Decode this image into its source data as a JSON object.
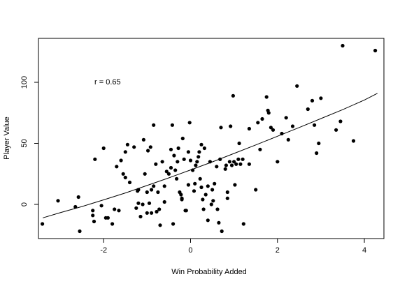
{
  "chart_data": {
    "type": "scatter",
    "title": "",
    "xlabel": "Win Probability Added",
    "ylabel": "Player Value",
    "xlim": [
      -3.5,
      4.45
    ],
    "ylim": [
      -28.0,
      136.0
    ],
    "x_ticks": [
      -2,
      0,
      2,
      4
    ],
    "y_ticks": [
      0,
      50,
      100
    ],
    "grid": false,
    "legend": "none",
    "annotation": "r = 0.65",
    "point_color": "#000000",
    "line_color": "#000000",
    "points": [
      [
        -3.41,
        -16
      ],
      [
        -3.05,
        3
      ],
      [
        -2.65,
        -2
      ],
      [
        -2.58,
        6
      ],
      [
        -2.55,
        -22
      ],
      [
        -2.25,
        -5
      ],
      [
        -2.25,
        -9
      ],
      [
        -2.22,
        -14
      ],
      [
        -2.2,
        37
      ],
      [
        -2.05,
        -1
      ],
      [
        -2.0,
        46
      ],
      [
        -1.95,
        -11
      ],
      [
        -1.9,
        -11
      ],
      [
        -1.8,
        -16
      ],
      [
        -1.75,
        -4
      ],
      [
        -1.7,
        31
      ],
      [
        -1.65,
        -5
      ],
      [
        -1.6,
        36
      ],
      [
        -1.55,
        25
      ],
      [
        -1.5,
        43
      ],
      [
        -1.5,
        22
      ],
      [
        -1.45,
        49
      ],
      [
        -1.4,
        18
      ],
      [
        -1.3,
        47
      ],
      [
        -1.25,
        -3
      ],
      [
        -1.22,
        11
      ],
      [
        -1.2,
        12
      ],
      [
        -1.2,
        1
      ],
      [
        -1.15,
        -10
      ],
      [
        -1.1,
        0
      ],
      [
        -1.08,
        53
      ],
      [
        -1.05,
        25
      ],
      [
        -1.0,
        10
      ],
      [
        -1.0,
        -7
      ],
      [
        -0.98,
        44
      ],
      [
        -0.95,
        1
      ],
      [
        -0.92,
        47
      ],
      [
        -0.9,
        12
      ],
      [
        -0.9,
        -7
      ],
      [
        -0.85,
        65
      ],
      [
        -0.85,
        15
      ],
      [
        -0.8,
        33
      ],
      [
        -0.78,
        -6
      ],
      [
        -0.75,
        10
      ],
      [
        -0.72,
        -4
      ],
      [
        -0.7,
        -17
      ],
      [
        -0.65,
        35
      ],
      [
        -0.6,
        15
      ],
      [
        -0.6,
        2
      ],
      [
        -0.55,
        27
      ],
      [
        -0.5,
        25
      ],
      [
        -0.45,
        45
      ],
      [
        -0.45,
        30
      ],
      [
        -0.42,
        65
      ],
      [
        -0.4,
        -16
      ],
      [
        -0.38,
        40
      ],
      [
        -0.35,
        28
      ],
      [
        -0.32,
        21
      ],
      [
        -0.3,
        35
      ],
      [
        -0.28,
        46
      ],
      [
        -0.25,
        10
      ],
      [
        -0.22,
        8
      ],
      [
        -0.2,
        5
      ],
      [
        -0.2,
        4
      ],
      [
        -0.18,
        54
      ],
      [
        -0.15,
        37
      ],
      [
        -0.12,
        -5
      ],
      [
        -0.1,
        -5
      ],
      [
        -0.05,
        16
      ],
      [
        -0.05,
        43
      ],
      [
        -0.02,
        67
      ],
      [
        0.0,
        36
      ],
      [
        0.05,
        28
      ],
      [
        0.08,
        11
      ],
      [
        0.1,
        17
      ],
      [
        0.12,
        32
      ],
      [
        0.15,
        35
      ],
      [
        0.18,
        39
      ],
      [
        0.2,
        43
      ],
      [
        0.25,
        49
      ],
      [
        0.22,
        21
      ],
      [
        0.25,
        14
      ],
      [
        0.28,
        4
      ],
      [
        0.3,
        -4
      ],
      [
        0.32,
        46
      ],
      [
        0.35,
        8
      ],
      [
        0.4,
        -13
      ],
      [
        0.4,
        15
      ],
      [
        0.45,
        35
      ],
      [
        0.48,
        0
      ],
      [
        0.5,
        12
      ],
      [
        0.52,
        3
      ],
      [
        0.55,
        17
      ],
      [
        0.6,
        31
      ],
      [
        0.62,
        -4
      ],
      [
        0.65,
        -15
      ],
      [
        0.68,
        37
      ],
      [
        0.7,
        63
      ],
      [
        0.72,
        -22
      ],
      [
        0.8,
        29
      ],
      [
        0.82,
        32
      ],
      [
        0.85,
        5
      ],
      [
        0.85,
        10
      ],
      [
        0.9,
        35
      ],
      [
        0.92,
        64
      ],
      [
        0.95,
        32
      ],
      [
        0.98,
        89
      ],
      [
        1.0,
        35
      ],
      [
        1.02,
        16
      ],
      [
        1.05,
        33
      ],
      [
        1.1,
        37
      ],
      [
        1.12,
        50
      ],
      [
        1.15,
        33
      ],
      [
        1.2,
        37
      ],
      [
        1.22,
        -16
      ],
      [
        1.35,
        62
      ],
      [
        1.35,
        33
      ],
      [
        1.5,
        12
      ],
      [
        1.55,
        67
      ],
      [
        1.6,
        45
      ],
      [
        1.65,
        70
      ],
      [
        1.75,
        88
      ],
      [
        1.78,
        77
      ],
      [
        1.8,
        75
      ],
      [
        1.85,
        63
      ],
      [
        1.9,
        61
      ],
      [
        2.0,
        35
      ],
      [
        2.1,
        58
      ],
      [
        2.2,
        71
      ],
      [
        2.25,
        53
      ],
      [
        2.35,
        64
      ],
      [
        2.45,
        97
      ],
      [
        2.7,
        78
      ],
      [
        2.8,
        85
      ],
      [
        2.85,
        65
      ],
      [
        2.9,
        42
      ],
      [
        2.95,
        50
      ],
      [
        3.0,
        87
      ],
      [
        3.35,
        61
      ],
      [
        3.45,
        68
      ],
      [
        3.5,
        130
      ],
      [
        3.75,
        52
      ],
      [
        4.25,
        126
      ]
    ],
    "fit_line": [
      [
        -3.4,
        -11
      ],
      [
        -3.0,
        -6.8
      ],
      [
        -2.5,
        -1.8
      ],
      [
        -2.0,
        3.7
      ],
      [
        -1.5,
        9.4
      ],
      [
        -1.0,
        15.5
      ],
      [
        -0.5,
        21.7
      ],
      [
        0.0,
        28.2
      ],
      [
        0.5,
        34.8
      ],
      [
        1.0,
        41.7
      ],
      [
        1.5,
        48.7
      ],
      [
        2.0,
        55.8
      ],
      [
        2.5,
        63.0
      ],
      [
        3.0,
        70.3
      ],
      [
        3.5,
        77.6
      ],
      [
        4.0,
        85.5
      ],
      [
        4.3,
        91
      ]
    ]
  }
}
